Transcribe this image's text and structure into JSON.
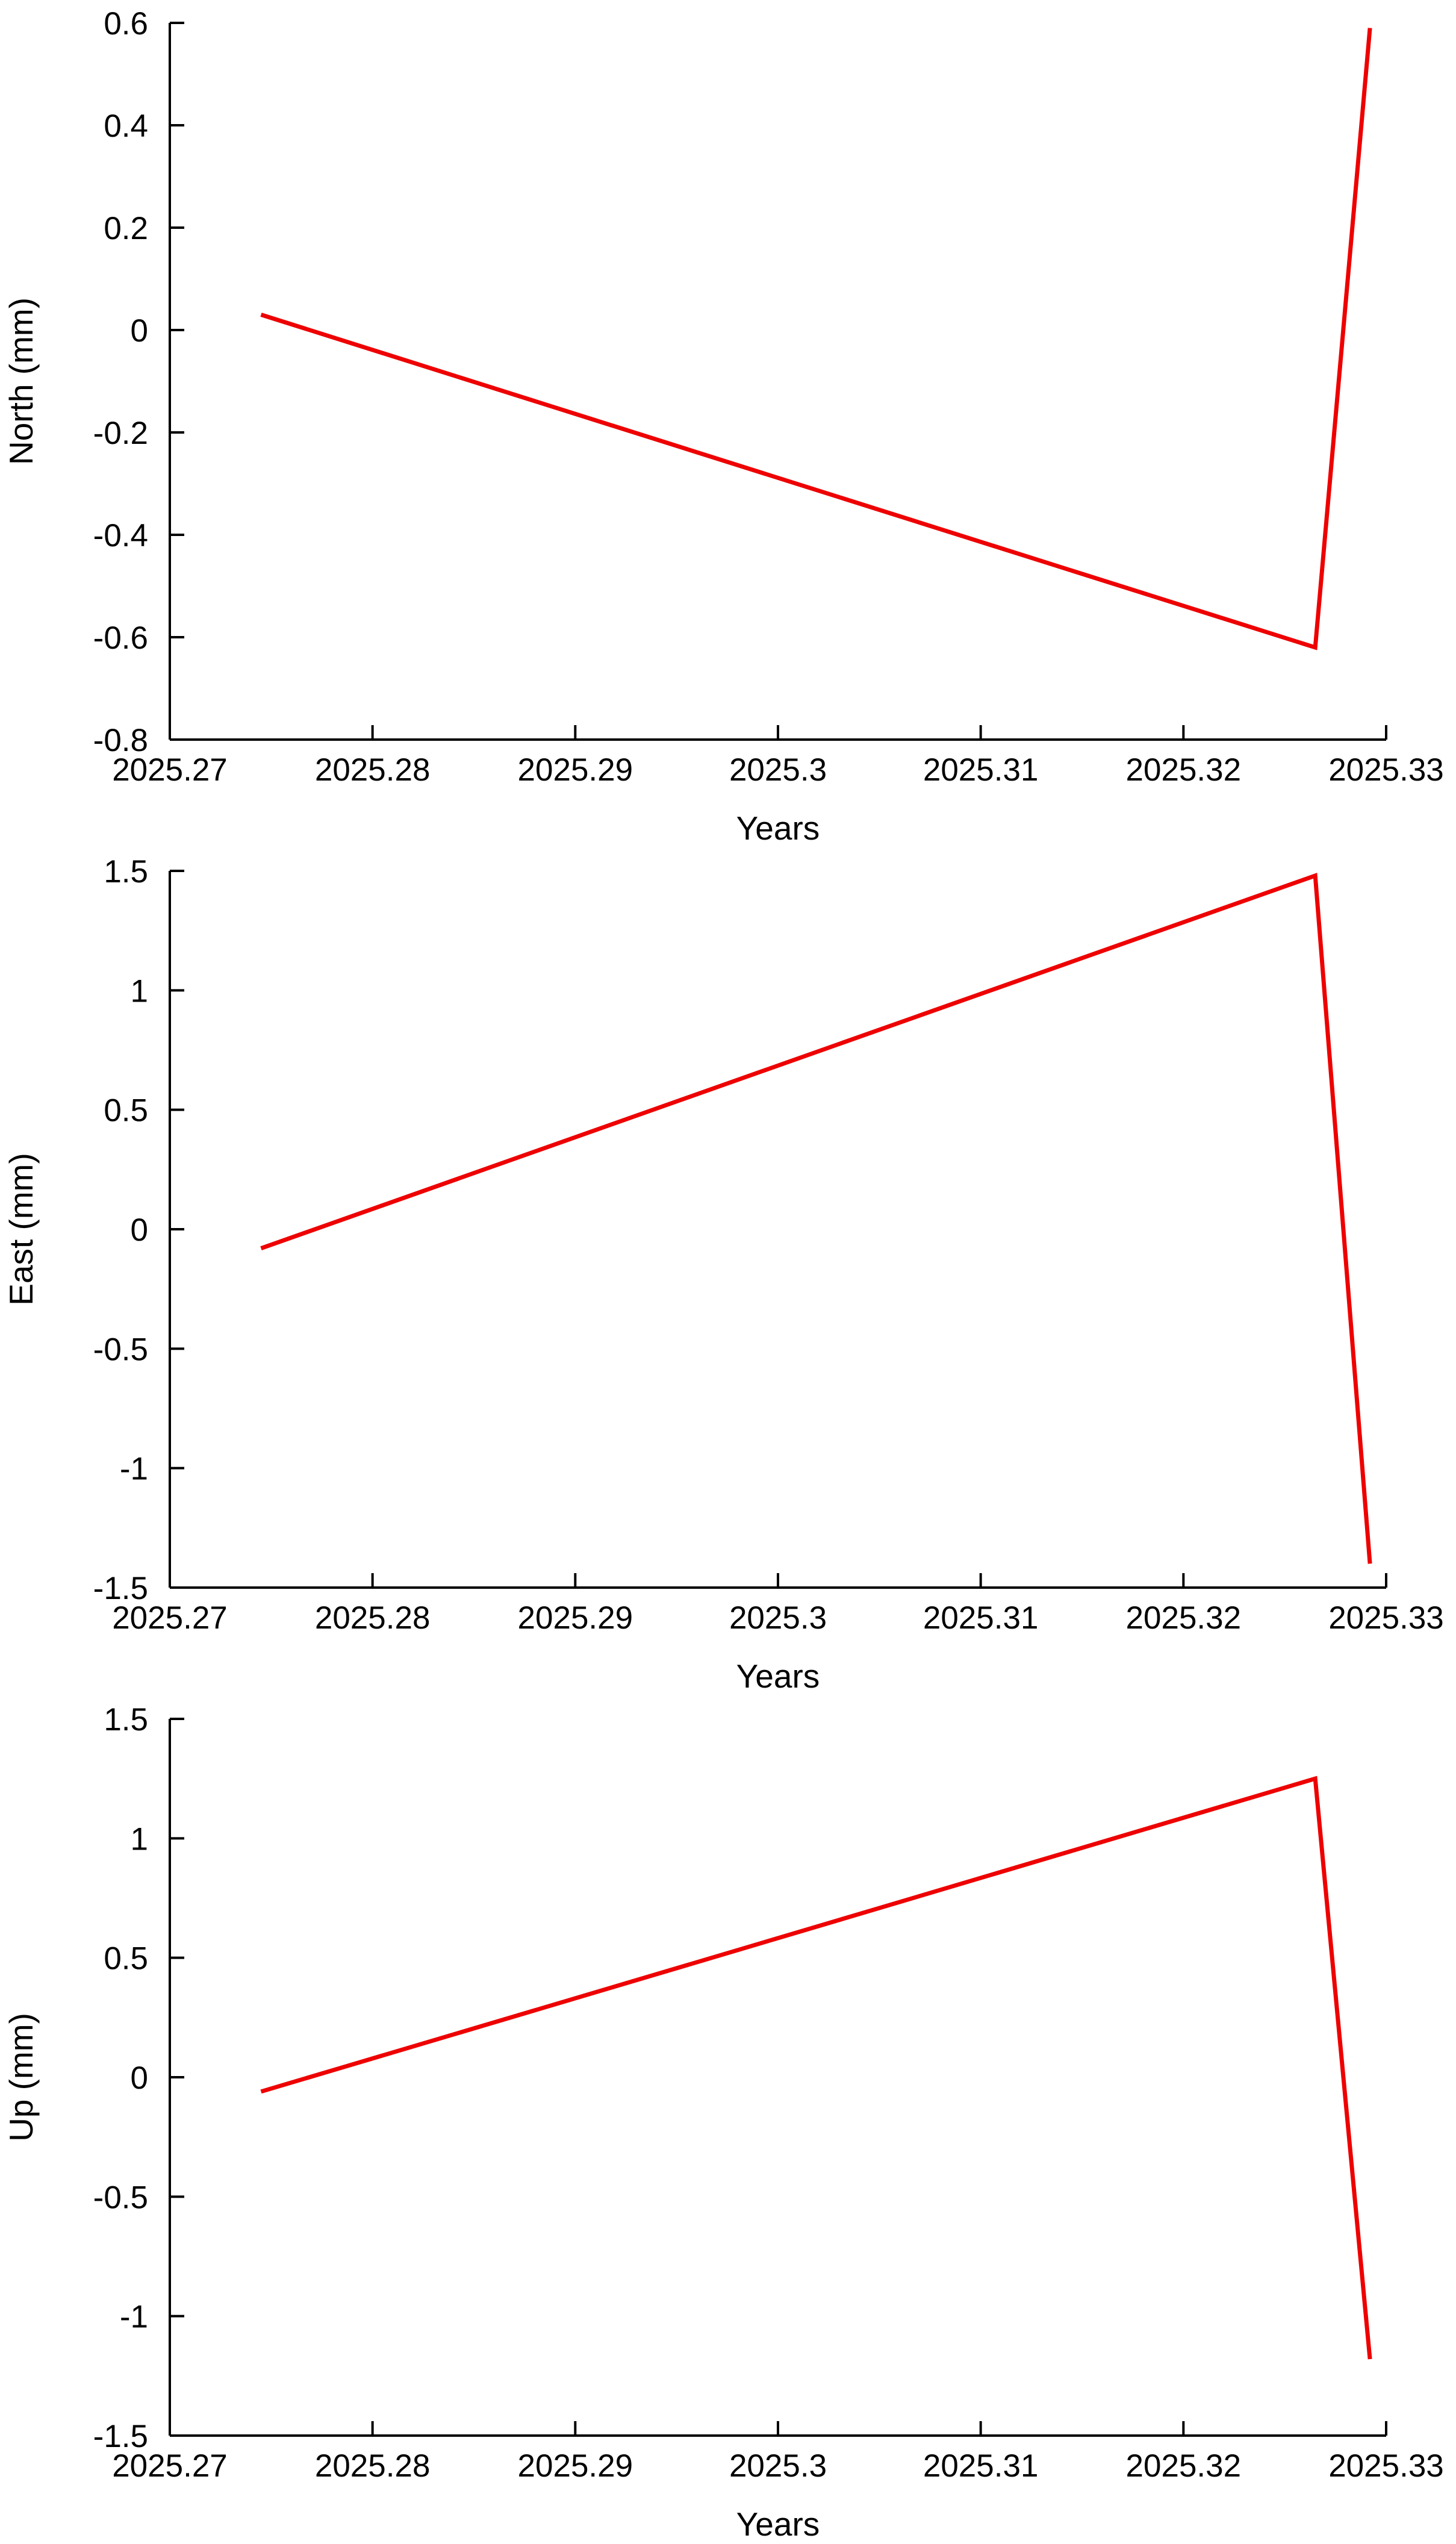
{
  "chart_data": [
    {
      "type": "line",
      "xlabel": "Years",
      "ylabel": "North (mm)",
      "xlim": [
        2025.27,
        2025.33
      ],
      "ylim": [
        -0.8,
        0.6
      ],
      "xticks": [
        2025.27,
        2025.28,
        2025.29,
        2025.3,
        2025.31,
        2025.32,
        2025.33
      ],
      "xtick_labels": [
        "2025.27",
        "2025.28",
        "2025.29",
        "2025.3",
        "2025.31",
        "2025.32",
        "2025.33"
      ],
      "yticks": [
        -0.8,
        -0.6,
        -0.4,
        -0.2,
        0,
        0.2,
        0.4,
        0.6
      ],
      "ytick_labels": [
        "-0.8",
        "-0.6",
        "-0.4",
        "-0.2",
        "0",
        "0.2",
        "0.4",
        "0.6"
      ],
      "grid": false,
      "series": [
        {
          "color": "#ee0000",
          "x": [
            2025.2745,
            2025.3265,
            2025.3292
          ],
          "y": [
            0.03,
            -0.62,
            0.59
          ]
        }
      ]
    },
    {
      "type": "line",
      "xlabel": "Years",
      "ylabel": "East (mm)",
      "xlim": [
        2025.27,
        2025.33
      ],
      "ylim": [
        -1.5,
        1.5
      ],
      "xticks": [
        2025.27,
        2025.28,
        2025.29,
        2025.3,
        2025.31,
        2025.32,
        2025.33
      ],
      "xtick_labels": [
        "2025.27",
        "2025.28",
        "2025.29",
        "2025.3",
        "2025.31",
        "2025.32",
        "2025.33"
      ],
      "yticks": [
        -1.5,
        -1,
        -0.5,
        0,
        0.5,
        1,
        1.5
      ],
      "ytick_labels": [
        "-1.5",
        "-1",
        "-0.5",
        "0",
        "0.5",
        "1",
        "1.5"
      ],
      "grid": false,
      "series": [
        {
          "color": "#ee0000",
          "x": [
            2025.2745,
            2025.3265,
            2025.3292
          ],
          "y": [
            -0.08,
            1.48,
            -1.4
          ]
        }
      ]
    },
    {
      "type": "line",
      "xlabel": "Years",
      "ylabel": "Up (mm)",
      "xlim": [
        2025.27,
        2025.33
      ],
      "ylim": [
        -1.5,
        1.5
      ],
      "xticks": [
        2025.27,
        2025.28,
        2025.29,
        2025.3,
        2025.31,
        2025.32,
        2025.33
      ],
      "xtick_labels": [
        "2025.27",
        "2025.28",
        "2025.29",
        "2025.3",
        "2025.31",
        "2025.32",
        "2025.33"
      ],
      "yticks": [
        -1.5,
        -1,
        -0.5,
        0,
        0.5,
        1,
        1.5
      ],
      "ytick_labels": [
        "-1.5",
        "-1",
        "-0.5",
        "0",
        "0.5",
        "1",
        "1.5"
      ],
      "grid": false,
      "series": [
        {
          "color": "#ee0000",
          "x": [
            2025.2745,
            2025.3265,
            2025.3292
          ],
          "y": [
            -0.06,
            1.25,
            -1.18
          ]
        }
      ]
    }
  ]
}
